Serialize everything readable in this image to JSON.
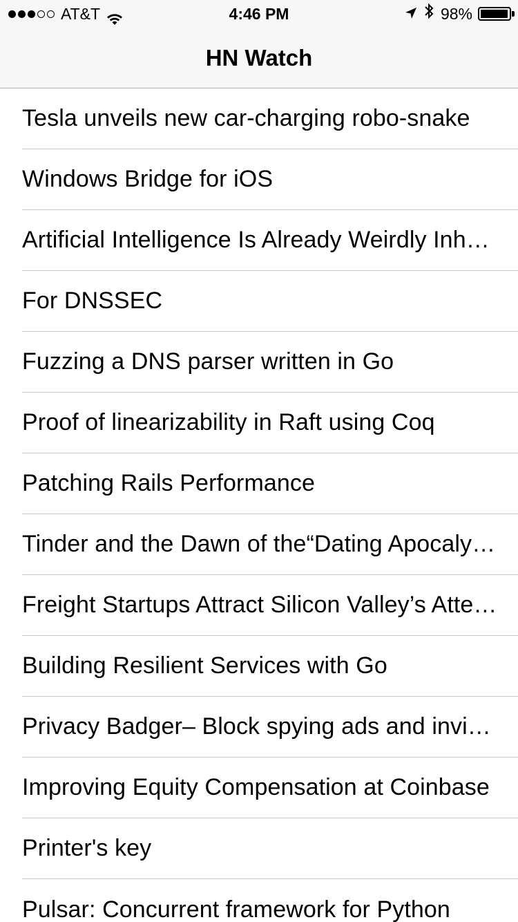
{
  "status_bar": {
    "signal_bars": [
      true,
      true,
      true,
      false,
      false
    ],
    "carrier": "AT&T",
    "wifi_icon": "wifi-icon",
    "time": "4:46 PM",
    "location_icon": "location-arrow-icon",
    "bluetooth_icon": "bluetooth-icon",
    "battery_percent": "98%",
    "battery_level": 0.98
  },
  "nav": {
    "title": "HN Watch"
  },
  "stories": [
    {
      "title": "Tesla unveils new car-charging robo-snake"
    },
    {
      "title": "Windows Bridge for iOS"
    },
    {
      "title": "Artificial Intelligence Is Already Weirdly Inhuman"
    },
    {
      "title": "For DNSSEC"
    },
    {
      "title": "Fuzzing a DNS parser written in Go"
    },
    {
      "title": "Proof of linearizability in Raft using Coq"
    },
    {
      "title": "Patching Rails Performance"
    },
    {
      "title": "Tinder and the Dawn of the“Dating Apocalypse”"
    },
    {
      "title": "Freight Startups Attract Silicon Valley’s Attention"
    },
    {
      "title": "Building Resilient Services with Go"
    },
    {
      "title": "Privacy Badger– Block spying ads and invisible trackers"
    },
    {
      "title": "Improving Equity Compensation at Coinbase"
    },
    {
      "title": "Printer's key"
    },
    {
      "title": "Pulsar: Concurrent framework for Python"
    }
  ]
}
